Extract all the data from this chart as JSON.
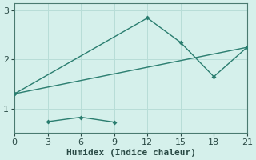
{
  "line1_x": [
    0,
    12,
    15,
    18,
    21
  ],
  "line1_y": [
    1.3,
    2.85,
    2.35,
    1.65,
    2.25
  ],
  "line2_x": [
    3,
    6,
    9
  ],
  "line2_y": [
    0.73,
    0.82,
    0.72
  ],
  "line3_x": [
    0,
    21
  ],
  "line3_y": [
    1.3,
    2.25
  ],
  "line_color": "#2a7d6f",
  "marker": "D",
  "marker_size": 3,
  "xlabel": "Humidex (Indice chaleur)",
  "xlim": [
    0,
    21
  ],
  "ylim": [
    0.5,
    3.15
  ],
  "xticks": [
    0,
    3,
    6,
    9,
    12,
    15,
    18,
    21
  ],
  "yticks": [
    1,
    2,
    3
  ],
  "bg_color": "#d5f0eb",
  "grid_color": "#b8ddd7",
  "spine_color": "#4a7a70",
  "font_color": "#2a4a45",
  "xlabel_fontsize": 8,
  "tick_fontsize": 8
}
